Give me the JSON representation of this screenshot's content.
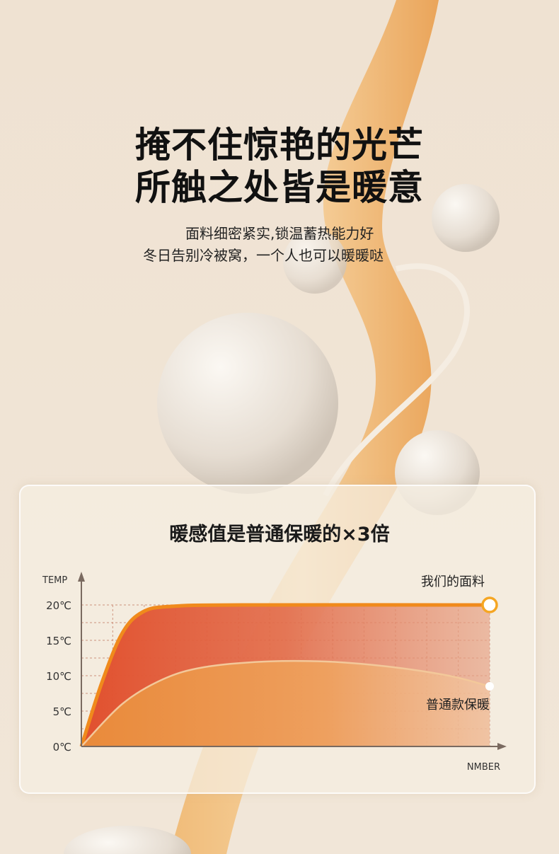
{
  "headline": [
    "掩不住惊艳的光芒",
    "所触之处皆是暖意"
  ],
  "subtitle": [
    "面料细密紧实,锁温蓄热能力好",
    "冬日告别冷被窝，一个人也可以暖暖哒"
  ],
  "chart_data": {
    "type": "area",
    "title": "暖感值是普通保暖的×3倍",
    "ylabel": "TEMP",
    "xlabel": "NMBER",
    "yticks": [
      "0℃",
      "5℃",
      "10℃",
      "15℃",
      "20℃"
    ],
    "ylim": [
      0,
      20
    ],
    "xlim": [
      0,
      100
    ],
    "grid": true,
    "series": [
      {
        "name": "我们的面料",
        "color": "#f08a1c",
        "x": [
          0,
          5,
          10,
          15,
          22,
          40,
          100
        ],
        "y": [
          0,
          9,
          16,
          19,
          19.8,
          20,
          20
        ]
      },
      {
        "name": "普通款保暖",
        "color": "#f3c89a",
        "x": [
          0,
          10,
          20,
          30,
          45,
          60,
          75,
          90,
          100
        ],
        "y": [
          0,
          6,
          9.5,
          11.2,
          12,
          12,
          11.3,
          10,
          8.5
        ]
      }
    ]
  }
}
